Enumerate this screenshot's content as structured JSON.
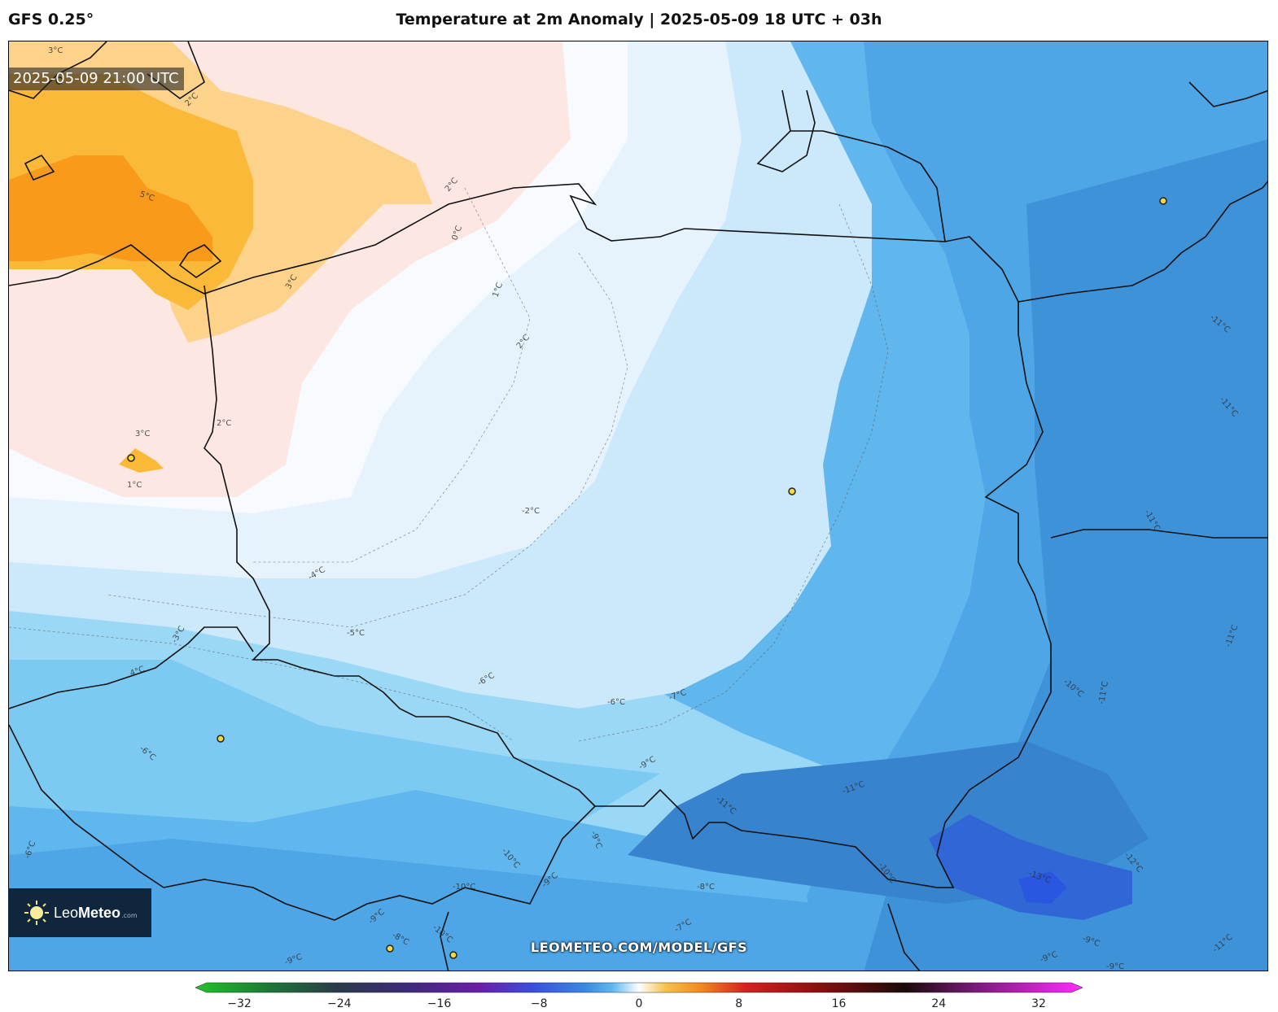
{
  "header": {
    "model": "GFS 0.25°",
    "title": "Temperature at 2m Anomaly | 2025-05-09 18 UTC + 03h"
  },
  "map": {
    "timestamp": "2025-05-09 21:00 UTC",
    "watermark": "LEOMETEO.COM/MODEL/GFS",
    "contour_labels": [
      "3°C",
      "2°C",
      "5°C",
      "0°C",
      "3°C",
      "1°C",
      "2°C",
      "2°C",
      "3°C",
      "1°C",
      "2°C",
      "-2°C",
      "-4°C",
      "-3°C",
      "-5°C",
      "4°C",
      "-6°C",
      "-6°C",
      "-7°C",
      "-6°C",
      "-9°C",
      "-11°C",
      "-11°C",
      "-9°C",
      "-10°C",
      "-10°C",
      "-9°C",
      "-8°C",
      "-10°C",
      "-9°C",
      "-8°C",
      "-7°C",
      "-6°C",
      "-9°C",
      "-10°C",
      "-13°C",
      "-12°C",
      "-11°C",
      "-11°C",
      "-11°C",
      "-11°C",
      "-11°C",
      "-10°C",
      "-11°C",
      "-9°C",
      "-9°C",
      "-9°C"
    ]
  },
  "logo": {
    "name_light": "Leo",
    "name_bold": "Meteo",
    "suffix": ".com"
  },
  "legend": {
    "ticks": [
      "−32",
      "−24",
      "−16",
      "−8",
      "0",
      "8",
      "16",
      "24",
      "32"
    ],
    "min": -32,
    "max": 32,
    "colors": {
      "cold_extreme": "#22c32a",
      "cold_deep": "#6a1fa6",
      "cold_blue": "#3a6fe0",
      "cool": "#5fb7ee",
      "neutral": "#ffffff",
      "warm": "#f6c24a",
      "hot": "#d42020",
      "very_hot": "#1a0a0a",
      "warm_extreme": "#ff2cff"
    }
  }
}
